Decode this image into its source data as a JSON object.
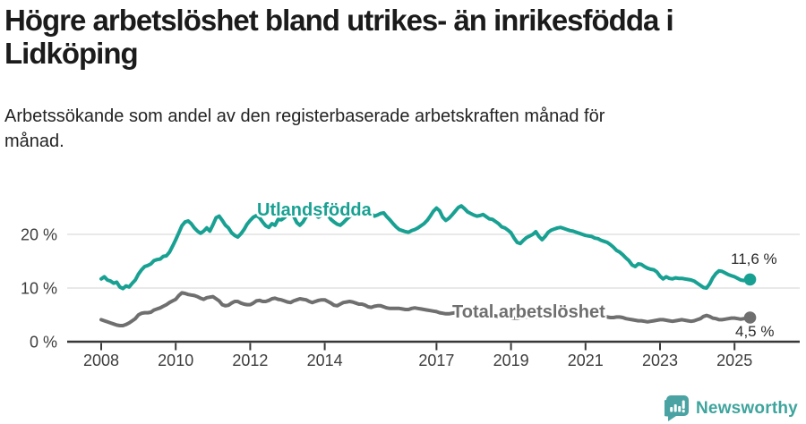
{
  "header": {
    "title": "Högre arbetslöshet bland utrikes- än inrikesfödda i Lidköping",
    "title_lines": [
      "Högre arbetslöshet bland utrikes- än inrikesfödda i",
      "Lidköping"
    ],
    "subtitle": "Arbetssökande som andel av den registerbaserade arbetskraften månad för månad.",
    "subtitle_lines": [
      "Arbetssökande som andel av den registerbaserade arbetskraften månad för",
      "månad."
    ]
  },
  "branding": {
    "name": "Newsworthy",
    "logo_icon": "bar-chart-speech-bubble-icon",
    "color": "#3ea49d"
  },
  "chart_data": {
    "type": "line",
    "title": "Högre arbetslöshet bland utrikes- än inrikesfödda i Lidköping",
    "subtitle": "Arbetssökande som andel av den registerbaserade arbetskraften månad för månad.",
    "unit": "%",
    "x_unit": "month",
    "x_start_year": 2008,
    "points_per_year": 12,
    "x_range": [
      2008.0,
      2025.42
    ],
    "ylim": [
      0,
      26.5
    ],
    "grid": "horizontal",
    "x_ticks": [
      2008,
      2010,
      2012,
      2014,
      2017,
      2019,
      2021,
      2023,
      2025
    ],
    "x_tick_labels": [
      "2008",
      "2010",
      "2012",
      "2014",
      "2017",
      "2019",
      "2021",
      "2023",
      "2025"
    ],
    "y_ticks": [
      0,
      10,
      20
    ],
    "y_tick_labels": [
      "0 %",
      "10 %",
      "20 %"
    ],
    "colors": {
      "grid": "#dcdcdc",
      "axis": "#383838",
      "tick_text": "#3d3d3d"
    },
    "series": [
      {
        "name": "Utlandsfödda",
        "color": "#18a192",
        "end_label": "11,6 %",
        "end_value": 11.6,
        "values": [
          11.7,
          12.1,
          11.5,
          11.3,
          10.9,
          11.1,
          10.2,
          9.9,
          10.4,
          10.2,
          10.9,
          11.5,
          12.6,
          13.4,
          14.0,
          14.2,
          14.5,
          15.1,
          15.3,
          15.4,
          15.9,
          16.0,
          16.7,
          17.8,
          19.0,
          20.3,
          21.6,
          22.3,
          22.5,
          22.0,
          21.2,
          20.6,
          20.2,
          20.6,
          21.2,
          20.6,
          21.8,
          23.1,
          23.4,
          22.6,
          21.7,
          21.2,
          20.3,
          19.8,
          19.5,
          20.1,
          20.9,
          21.9,
          22.6,
          23.2,
          23.5,
          23.1,
          22.3,
          21.6,
          21.3,
          22.0,
          21.7,
          22.8,
          22.7,
          23.1,
          23.7,
          24.0,
          23.4,
          22.2,
          21.7,
          22.3,
          23.3,
          23.8,
          24.0,
          23.6,
          23.2,
          23.6,
          24.0,
          23.6,
          22.8,
          22.3,
          21.9,
          21.7,
          22.2,
          22.8,
          23.3,
          23.8,
          24.1,
          23.8,
          23.6,
          23.9,
          24.2,
          23.8,
          23.4,
          23.6,
          23.9,
          24.0,
          23.3,
          22.7,
          22.0,
          21.4,
          20.9,
          20.7,
          20.5,
          20.4,
          20.7,
          20.9,
          21.2,
          21.6,
          22.0,
          22.6,
          23.4,
          24.3,
          24.9,
          24.4,
          23.2,
          22.6,
          23.0,
          23.6,
          24.3,
          25.0,
          25.3,
          24.8,
          24.2,
          23.9,
          23.6,
          23.4,
          23.5,
          23.7,
          23.3,
          22.9,
          22.8,
          22.4,
          22.0,
          21.4,
          21.2,
          20.8,
          20.3,
          19.3,
          18.5,
          18.3,
          18.9,
          19.4,
          19.7,
          20.0,
          20.5,
          19.6,
          19.0,
          19.6,
          20.4,
          20.8,
          21.0,
          21.2,
          21.3,
          21.1,
          20.9,
          20.7,
          20.6,
          20.4,
          20.2,
          20.0,
          19.8,
          19.7,
          19.6,
          19.3,
          19.2,
          18.9,
          18.7,
          18.5,
          18.1,
          17.6,
          17.0,
          16.7,
          16.2,
          15.6,
          15.1,
          14.3,
          14.0,
          14.5,
          14.4,
          14.0,
          13.7,
          13.5,
          13.4,
          13.0,
          12.2,
          11.7,
          12.1,
          11.8,
          11.7,
          11.9,
          11.8,
          11.8,
          11.7,
          11.6,
          11.5,
          11.3,
          10.9,
          10.5,
          10.1,
          10.0,
          10.8,
          11.9,
          12.7,
          13.2,
          13.1,
          12.8,
          12.5,
          12.3,
          12.1,
          11.8,
          11.5,
          11.4,
          11.7,
          11.6
        ]
      },
      {
        "name": "Total arbetslöshet",
        "color": "#6f6f6f",
        "end_label": "4,5 %",
        "end_value": 4.5,
        "values": [
          4.1,
          3.9,
          3.7,
          3.5,
          3.3,
          3.1,
          3.0,
          3.0,
          3.2,
          3.5,
          3.9,
          4.3,
          5.0,
          5.3,
          5.4,
          5.4,
          5.5,
          5.9,
          6.1,
          6.3,
          6.6,
          6.9,
          7.3,
          7.6,
          7.9,
          8.6,
          9.1,
          9.0,
          8.8,
          8.7,
          8.6,
          8.4,
          8.1,
          7.9,
          8.2,
          8.3,
          8.4,
          8.0,
          7.6,
          6.9,
          6.7,
          6.8,
          7.2,
          7.5,
          7.5,
          7.2,
          7.0,
          6.9,
          6.9,
          7.2,
          7.6,
          7.7,
          7.5,
          7.5,
          7.7,
          8.0,
          8.1,
          7.9,
          7.8,
          7.6,
          7.4,
          7.3,
          7.6,
          7.8,
          8.0,
          7.9,
          7.8,
          7.5,
          7.3,
          7.5,
          7.7,
          7.8,
          7.8,
          7.5,
          7.2,
          6.8,
          6.7,
          7.0,
          7.3,
          7.4,
          7.5,
          7.4,
          7.2,
          7.0,
          7.0,
          6.8,
          6.5,
          6.4,
          6.6,
          6.7,
          6.7,
          6.5,
          6.3,
          6.2,
          6.2,
          6.2,
          6.2,
          6.1,
          6.0,
          6.0,
          6.2,
          6.3,
          6.2,
          6.1,
          6.0,
          5.9,
          5.8,
          5.7,
          5.6,
          5.4,
          5.3,
          5.2,
          5.2,
          5.3,
          5.4,
          5.4,
          5.3,
          5.2,
          5.1,
          5.0,
          5.0,
          4.9,
          4.8,
          4.7,
          4.7,
          4.8,
          4.9,
          4.8,
          4.7,
          4.6,
          4.5,
          4.5,
          4.5,
          4.4,
          4.4,
          4.5,
          4.5,
          4.6,
          4.7,
          4.7,
          4.6,
          4.6,
          4.7,
          4.8,
          5.0,
          5.2,
          5.5,
          5.8,
          5.9,
          5.9,
          5.8,
          5.7,
          5.6,
          5.5,
          5.4,
          5.3,
          5.2,
          5.1,
          5.0,
          4.9,
          4.8,
          4.8,
          4.7,
          4.6,
          4.5,
          4.5,
          4.6,
          4.6,
          4.5,
          4.3,
          4.2,
          4.1,
          4.0,
          3.9,
          3.9,
          3.8,
          3.7,
          3.8,
          3.9,
          4.0,
          4.1,
          4.1,
          4.0,
          3.9,
          3.8,
          3.9,
          4.0,
          4.1,
          4.0,
          3.9,
          3.8,
          3.9,
          4.1,
          4.3,
          4.7,
          4.9,
          4.7,
          4.4,
          4.3,
          4.1,
          4.1,
          4.2,
          4.3,
          4.4,
          4.4,
          4.3,
          4.2,
          4.3,
          4.4,
          4.5
        ]
      }
    ]
  }
}
